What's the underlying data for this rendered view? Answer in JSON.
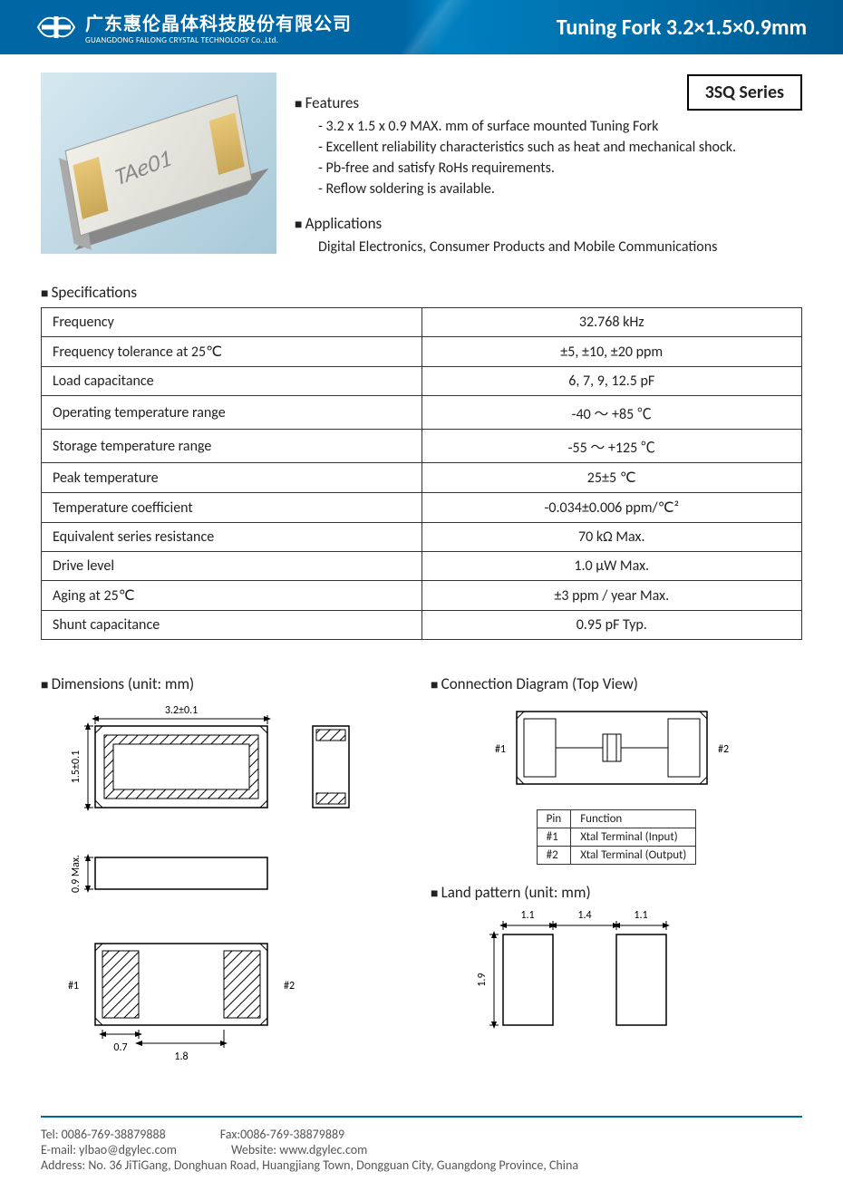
{
  "header": {
    "company_cn": "广东惠伦晶体科技股份有限公司",
    "company_en": "GUANGDONG FAILONG CRYSTAL TECHNOLOGY Co.,Ltd.",
    "title": "Tuning Fork 3.2×1.5×0.9mm",
    "series": "3SQ Series"
  },
  "product_marking": "TAe01",
  "features": {
    "heading": "Features",
    "items": [
      "3.2 x 1.5 x 0.9 MAX. mm of surface mounted Tuning Fork",
      "Excellent reliability characteristics such as heat and mechanical shock.",
      "Pb-free and satisfy RoHs requirements.",
      "Reflow soldering is available."
    ]
  },
  "applications": {
    "heading": "Applications",
    "text": "Digital Electronics, Consumer Products and Mobile Communications"
  },
  "specifications": {
    "heading": "Specifications",
    "rows": [
      {
        "param": "Frequency",
        "value": "32.768 kHz"
      },
      {
        "param": "Frequency tolerance at 25℃",
        "value": "±5, ±10, ±20 ppm"
      },
      {
        "param": "Load capacitance",
        "value": "6, 7, 9, 12.5 pF"
      },
      {
        "param": "Operating temperature range",
        "value": "-40 ～ +85 ℃"
      },
      {
        "param": "Storage temperature range",
        "value": "-55 ～ +125 ℃"
      },
      {
        "param": "Peak temperature",
        "value": "25±5 ℃"
      },
      {
        "param": "Temperature coefficient",
        "value": "-0.034±0.006 ppm/℃²"
      },
      {
        "param": "Equivalent series resistance",
        "value": "70 kΩ Max."
      },
      {
        "param": "Drive level",
        "value": "1.0 μW Max."
      },
      {
        "param": "Aging at 25℃",
        "value": "±3 ppm / year Max."
      },
      {
        "param": "Shunt capacitance",
        "value": "0.95 pF Typ."
      }
    ]
  },
  "dimensions": {
    "heading": "Dimensions (unit: mm)",
    "length": "3.2±0.1",
    "width": "1.5±0.1",
    "height": "0.9 Max.",
    "pad_width": "0.7",
    "pad_gap": "1.8",
    "pin1": "#1",
    "pin2": "#2"
  },
  "connection": {
    "heading": "Connection Diagram (Top View)",
    "pin1": "#1",
    "pin2": "#2",
    "table": {
      "cols": [
        "Pin",
        "Function"
      ],
      "rows": [
        [
          "#1",
          "Xtal Terminal (Input)"
        ],
        [
          "#2",
          "Xtal Terminal (Output)"
        ]
      ]
    }
  },
  "land_pattern": {
    "heading": "Land pattern (unit: mm)",
    "pad_w": "1.1",
    "gap": "1.4",
    "pad_h": "1.9"
  },
  "footer": {
    "tel": "Tel: 0086-769-38879888",
    "fax": "Fax:0086-769-38879889",
    "email": "E-mail: ylbao@dgylec.com",
    "website": "Website: www.dgylec.com",
    "address": "Address: No. 36 JiTiGang, Donghuan Road, Huangjiang Town, Dongguan City, Guangdong Province, China"
  },
  "colors": {
    "header_bg": "#0066a4",
    "border": "#333333",
    "footer_rule": "#0066a4"
  }
}
